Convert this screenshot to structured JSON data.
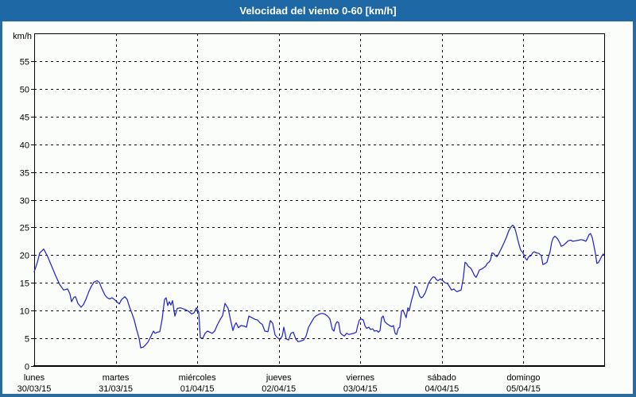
{
  "window": {
    "title": "Velocidad del viento 0-60 [km/h]"
  },
  "colors": {
    "titlebar_bg": "#1e69a5",
    "titlebar_text": "#ffffff",
    "frame_border": "#2b6ba0",
    "background": "#fbfdfb",
    "grid": "#000000",
    "axis": "#000000",
    "line": "#2424cc",
    "label_text": "#000000"
  },
  "chart_data": {
    "type": "line",
    "title": "Velocidad del viento 0-60 [km/h]",
    "unit_label": "km/h",
    "ylim": [
      0,
      60
    ],
    "ytick_step": 5,
    "ytick_labels": [
      "0",
      "5",
      "10",
      "15",
      "20",
      "25",
      "30",
      "35",
      "40",
      "45",
      "50",
      "55"
    ],
    "grid": "dashed",
    "legend": "none",
    "x_days": [
      {
        "name": "lunes",
        "date": "30/03/15"
      },
      {
        "name": "martes",
        "date": "31/03/15"
      },
      {
        "name": "miércoles",
        "date": "01/04/15"
      },
      {
        "name": "jueves",
        "date": "02/04/15"
      },
      {
        "name": "viernes",
        "date": "03/04/15"
      },
      {
        "name": "sábado",
        "date": "04/04/15"
      },
      {
        "name": "domingo",
        "date": "05/04/15"
      }
    ],
    "series": [
      {
        "name": "Velocidad del viento",
        "color": "#2424cc",
        "points": [
          [
            0.0,
            17.0
          ],
          [
            0.039,
            18.7
          ],
          [
            0.068,
            20.4
          ],
          [
            0.117,
            21.1
          ],
          [
            0.166,
            19.7
          ],
          [
            0.214,
            18.0
          ],
          [
            0.263,
            16.3
          ],
          [
            0.312,
            14.7
          ],
          [
            0.361,
            13.7
          ],
          [
            0.409,
            13.9
          ],
          [
            0.439,
            13.0
          ],
          [
            0.458,
            11.6
          ],
          [
            0.487,
            12.4
          ],
          [
            0.507,
            12.5
          ],
          [
            0.536,
            11.3
          ],
          [
            0.575,
            10.6
          ],
          [
            0.604,
            11.1
          ],
          [
            0.634,
            12.0
          ],
          [
            0.673,
            13.5
          ],
          [
            0.702,
            14.4
          ],
          [
            0.731,
            15.1
          ],
          [
            0.77,
            15.4
          ],
          [
            0.799,
            15.1
          ],
          [
            0.829,
            14.0
          ],
          [
            0.868,
            12.8
          ],
          [
            0.897,
            12.3
          ],
          [
            0.926,
            12.1
          ],
          [
            0.955,
            12.3
          ],
          [
            0.985,
            12.0
          ],
          [
            1.014,
            11.6
          ],
          [
            1.043,
            11.2
          ],
          [
            1.072,
            12.0
          ],
          [
            1.111,
            12.5
          ],
          [
            1.141,
            12.0
          ],
          [
            1.17,
            10.6
          ],
          [
            1.199,
            9.5
          ],
          [
            1.228,
            8.2
          ],
          [
            1.258,
            6.5
          ],
          [
            1.287,
            5.0
          ],
          [
            1.306,
            3.3
          ],
          [
            1.336,
            3.4
          ],
          [
            1.365,
            3.8
          ],
          [
            1.394,
            4.3
          ],
          [
            1.433,
            5.4
          ],
          [
            1.462,
            6.3
          ],
          [
            1.482,
            5.9
          ],
          [
            1.511,
            6.1
          ],
          [
            1.54,
            6.2
          ],
          [
            1.57,
            8.5
          ],
          [
            1.599,
            12.0
          ],
          [
            1.618,
            12.3
          ],
          [
            1.638,
            10.9
          ],
          [
            1.657,
            11.6
          ],
          [
            1.677,
            11.0
          ],
          [
            1.696,
            11.8
          ],
          [
            1.726,
            9.0
          ],
          [
            1.755,
            10.4
          ],
          [
            1.794,
            10.5
          ],
          [
            1.852,
            10.2
          ],
          [
            1.891,
            9.9
          ],
          [
            1.93,
            9.4
          ],
          [
            1.96,
            9.6
          ],
          [
            1.989,
            10.5
          ],
          [
            2.018,
            9.7
          ],
          [
            2.038,
            5.1
          ],
          [
            2.067,
            5.0
          ],
          [
            2.096,
            5.9
          ],
          [
            2.125,
            6.3
          ],
          [
            2.155,
            6.1
          ],
          [
            2.184,
            5.9
          ],
          [
            2.213,
            6.3
          ],
          [
            2.242,
            7.3
          ],
          [
            2.281,
            8.4
          ],
          [
            2.311,
            9.1
          ],
          [
            2.34,
            11.3
          ],
          [
            2.379,
            10.4
          ],
          [
            2.408,
            8.3
          ],
          [
            2.437,
            6.4
          ],
          [
            2.457,
            7.3
          ],
          [
            2.476,
            7.8
          ],
          [
            2.506,
            6.9
          ],
          [
            2.535,
            7.3
          ],
          [
            2.574,
            7.2
          ],
          [
            2.603,
            7.0
          ],
          [
            2.632,
            9.0
          ],
          [
            2.671,
            8.7
          ],
          [
            2.71,
            8.4
          ],
          [
            2.74,
            8.3
          ],
          [
            2.769,
            7.8
          ],
          [
            2.798,
            7.5
          ],
          [
            2.828,
            6.3
          ],
          [
            2.866,
            6.2
          ],
          [
            2.896,
            8.2
          ],
          [
            2.925,
            7.7
          ],
          [
            2.954,
            5.6
          ],
          [
            2.983,
            5.1
          ],
          [
            3.013,
            4.8
          ],
          [
            3.042,
            5.4
          ],
          [
            3.061,
            7.0
          ],
          [
            3.091,
            4.9
          ],
          [
            3.12,
            4.7
          ],
          [
            3.149,
            5.9
          ],
          [
            3.178,
            6.1
          ],
          [
            3.208,
            4.9
          ],
          [
            3.237,
            4.4
          ],
          [
            3.266,
            4.5
          ],
          [
            3.305,
            4.7
          ],
          [
            3.334,
            5.4
          ],
          [
            3.364,
            7.0
          ],
          [
            3.403,
            8.0
          ],
          [
            3.432,
            8.7
          ],
          [
            3.461,
            9.1
          ],
          [
            3.5,
            9.4
          ],
          [
            3.529,
            9.5
          ],
          [
            3.559,
            9.4
          ],
          [
            3.598,
            9.0
          ],
          [
            3.627,
            8.5
          ],
          [
            3.656,
            6.6
          ],
          [
            3.676,
            6.3
          ],
          [
            3.695,
            7.5
          ],
          [
            3.715,
            8.0
          ],
          [
            3.734,
            7.8
          ],
          [
            3.754,
            6.0
          ],
          [
            3.773,
            5.7
          ],
          [
            3.802,
            5.4
          ],
          [
            3.831,
            5.9
          ],
          [
            3.861,
            5.7
          ],
          [
            3.89,
            5.8
          ],
          [
            3.919,
            5.9
          ],
          [
            3.949,
            6.1
          ],
          [
            3.968,
            7.3
          ],
          [
            3.988,
            8.3
          ],
          [
            4.007,
            8.5
          ],
          [
            4.036,
            8.3
          ],
          [
            4.056,
            7.3
          ],
          [
            4.075,
            6.8
          ],
          [
            4.104,
            7.0
          ],
          [
            4.124,
            6.6
          ],
          [
            4.153,
            6.7
          ],
          [
            4.172,
            6.3
          ],
          [
            4.202,
            6.4
          ],
          [
            4.221,
            6.1
          ],
          [
            4.241,
            6.4
          ],
          [
            4.26,
            8.7
          ],
          [
            4.28,
            9.0
          ],
          [
            4.299,
            8.0
          ],
          [
            4.328,
            7.6
          ],
          [
            4.358,
            7.3
          ],
          [
            4.387,
            7.1
          ],
          [
            4.406,
            7.3
          ],
          [
            4.426,
            5.9
          ],
          [
            4.445,
            5.7
          ],
          [
            4.465,
            6.8
          ],
          [
            4.484,
            7.0
          ],
          [
            4.504,
            9.9
          ],
          [
            4.523,
            10.1
          ],
          [
            4.543,
            9.4
          ],
          [
            4.562,
            8.7
          ],
          [
            4.582,
            10.5
          ],
          [
            4.601,
            10.1
          ],
          [
            4.63,
            12.0
          ],
          [
            4.65,
            13.0
          ],
          [
            4.669,
            14.4
          ],
          [
            4.689,
            14.2
          ],
          [
            4.708,
            13.5
          ],
          [
            4.728,
            12.6
          ],
          [
            4.747,
            12.3
          ],
          [
            4.767,
            12.5
          ],
          [
            4.796,
            13.2
          ],
          [
            4.815,
            14.0
          ],
          [
            4.835,
            14.9
          ],
          [
            4.864,
            15.6
          ],
          [
            4.893,
            16.1
          ],
          [
            4.913,
            16.0
          ],
          [
            4.932,
            15.6
          ],
          [
            4.952,
            15.4
          ],
          [
            4.981,
            15.7
          ],
          [
            5.01,
            15.4
          ],
          [
            5.04,
            15.0
          ],
          [
            5.069,
            14.9
          ],
          [
            5.098,
            14.2
          ],
          [
            5.118,
            13.7
          ],
          [
            5.147,
            13.9
          ],
          [
            5.166,
            13.6
          ],
          [
            5.186,
            13.4
          ],
          [
            5.215,
            13.6
          ],
          [
            5.235,
            13.7
          ],
          [
            5.264,
            16.0
          ],
          [
            5.283,
            18.7
          ],
          [
            5.303,
            18.5
          ],
          [
            5.322,
            18.0
          ],
          [
            5.342,
            17.8
          ],
          [
            5.361,
            17.5
          ],
          [
            5.381,
            16.9
          ],
          [
            5.4,
            16.3
          ],
          [
            5.42,
            16.0
          ],
          [
            5.439,
            16.6
          ],
          [
            5.459,
            17.3
          ],
          [
            5.488,
            17.5
          ],
          [
            5.508,
            17.7
          ],
          [
            5.537,
            18.0
          ],
          [
            5.556,
            18.5
          ],
          [
            5.576,
            18.7
          ],
          [
            5.595,
            19.1
          ],
          [
            5.615,
            20.4
          ],
          [
            5.634,
            20.3
          ],
          [
            5.654,
            19.9
          ],
          [
            5.673,
            19.7
          ],
          [
            5.693,
            20.1
          ],
          [
            5.712,
            20.7
          ],
          [
            5.732,
            21.3
          ],
          [
            5.761,
            22.2
          ],
          [
            5.79,
            23.2
          ],
          [
            5.82,
            24.4
          ],
          [
            5.849,
            25.1
          ],
          [
            5.868,
            25.4
          ],
          [
            5.888,
            25.1
          ],
          [
            5.907,
            24.2
          ],
          [
            5.927,
            23.0
          ],
          [
            5.946,
            21.9
          ],
          [
            5.966,
            20.9
          ],
          [
            5.985,
            20.6
          ],
          [
            6.005,
            20.1
          ],
          [
            6.024,
            19.4
          ],
          [
            6.044,
            19.1
          ],
          [
            6.063,
            19.7
          ],
          [
            6.092,
            19.9
          ],
          [
            6.112,
            20.4
          ],
          [
            6.131,
            20.6
          ],
          [
            6.161,
            20.4
          ],
          [
            6.19,
            20.3
          ],
          [
            6.219,
            19.9
          ],
          [
            6.239,
            18.3
          ],
          [
            6.268,
            18.5
          ],
          [
            6.287,
            18.7
          ],
          [
            6.307,
            19.7
          ],
          [
            6.326,
            20.6
          ],
          [
            6.346,
            22.3
          ],
          [
            6.365,
            23.1
          ],
          [
            6.385,
            23.4
          ],
          [
            6.404,
            23.2
          ],
          [
            6.424,
            22.8
          ],
          [
            6.443,
            22.3
          ],
          [
            6.463,
            21.6
          ],
          [
            6.492,
            21.8
          ],
          [
            6.521,
            22.2
          ],
          [
            6.55,
            22.6
          ],
          [
            6.58,
            22.7
          ],
          [
            6.609,
            22.5
          ],
          [
            6.638,
            22.6
          ],
          [
            6.677,
            22.7
          ],
          [
            6.706,
            22.8
          ],
          [
            6.736,
            22.7
          ],
          [
            6.765,
            22.5
          ],
          [
            6.784,
            23.0
          ],
          [
            6.804,
            23.7
          ],
          [
            6.823,
            23.9
          ],
          [
            6.843,
            23.2
          ],
          [
            6.862,
            21.9
          ],
          [
            6.882,
            20.3
          ],
          [
            6.901,
            18.5
          ],
          [
            6.921,
            18.7
          ],
          [
            6.94,
            19.2
          ],
          [
            6.96,
            19.8
          ],
          [
            6.979,
            20.2
          ],
          [
            6.989,
            20.0
          ]
        ]
      }
    ]
  }
}
